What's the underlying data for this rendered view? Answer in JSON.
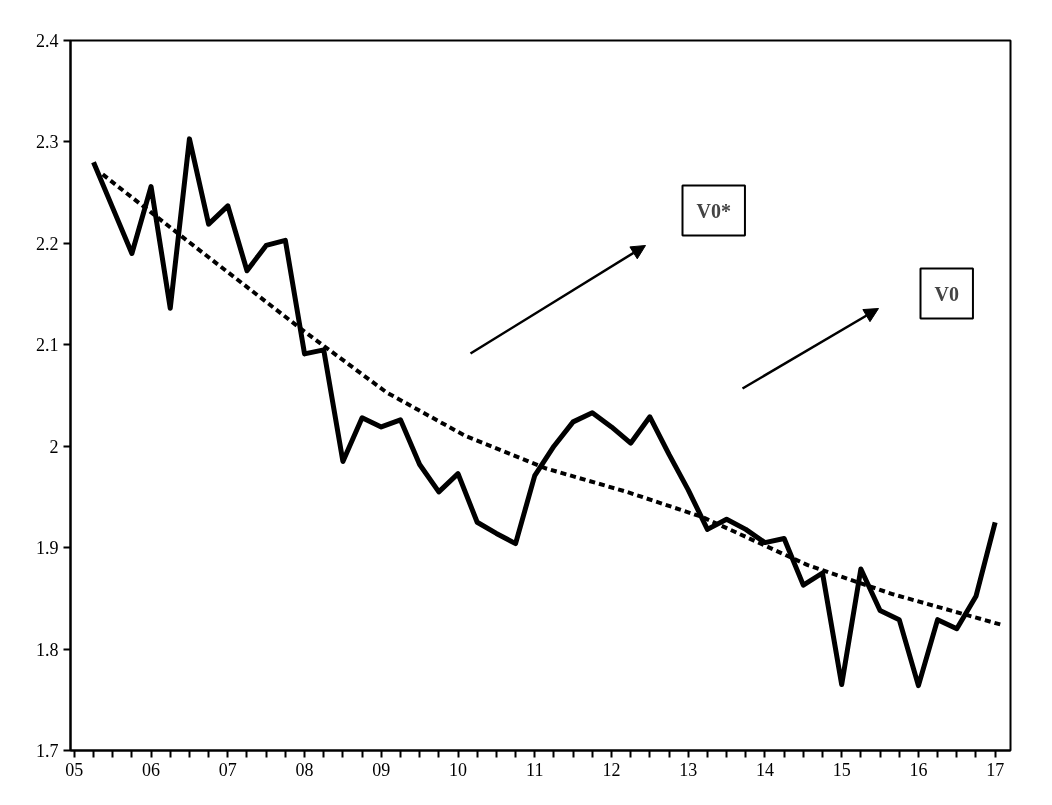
{
  "chart_data": {
    "type": "line",
    "x": [
      2005.25,
      2005.5,
      2005.75,
      2006,
      2006.25,
      2006.5,
      2006.75,
      2007,
      2007.25,
      2007.5,
      2007.75,
      2008,
      2008.25,
      2008.5,
      2008.75,
      2009,
      2009.25,
      2009.5,
      2009.75,
      2010,
      2010.25,
      2010.5,
      2010.75,
      2011,
      2011.25,
      2011.5,
      2011.75,
      2012,
      2012.25,
      2012.5,
      2012.75,
      2013,
      2013.25,
      2013.5,
      2013.75,
      2014,
      2014.25,
      2014.5,
      2014.75,
      2015,
      2015.25,
      2015.5,
      2015.75,
      2016,
      2016.25,
      2016.5,
      2016.75,
      2017
    ],
    "series": [
      {
        "color": "#000000",
        "line_style": "solid",
        "values": [
          2.28,
          2.235,
          2.19,
          2.256,
          2.136,
          2.303,
          2.219,
          2.237,
          2.173,
          2.198,
          2.203,
          2.091,
          2.095,
          1.985,
          2.028,
          2.019,
          2.026,
          1.982,
          1.955,
          1.973,
          1.925,
          1.914,
          1.904,
          1.971,
          2.0,
          2.024,
          2.033,
          2.019,
          2.003,
          2.029,
          1.992,
          1.957,
          1.918,
          1.928,
          1.918,
          1.905,
          1.909,
          1.863,
          1.875,
          1.765,
          1.879,
          1.838,
          1.829,
          1.764,
          1.829,
          1.82,
          1.852,
          1.925
        ]
      },
      {
        "color": "#000000",
        "line_style": "dashed",
        "x": [
          2005.37,
          2005.57,
          2006.55,
          2008.0,
          2009.07,
          2010.1,
          2011.15,
          2012.2,
          2013.19,
          2014.55,
          2015.67,
          2017.08
        ],
        "values": [
          2.268,
          2.256,
          2.198,
          2.113,
          2.053,
          2.01,
          1.978,
          1.955,
          1.93,
          1.883,
          1.854,
          1.824
        ]
      }
    ],
    "ylim": [
      1.7,
      2.4
    ],
    "yticks": [
      1.7,
      1.8,
      1.9,
      2.0,
      2.1,
      2.2,
      2.3,
      2.4
    ],
    "xlim": [
      2004.95,
      2017.2
    ],
    "xticks": [
      {
        "value": 2005,
        "label": "05"
      },
      {
        "value": 2005.25,
        "label": null
      },
      {
        "value": 2005.5,
        "label": null
      },
      {
        "value": 2005.75,
        "label": null
      },
      {
        "value": 2006,
        "label": "06"
      },
      {
        "value": 2006.25,
        "label": null
      },
      {
        "value": 2006.5,
        "label": null
      },
      {
        "value": 2006.75,
        "label": null
      },
      {
        "value": 2007,
        "label": "07"
      },
      {
        "value": 2007.25,
        "label": null
      },
      {
        "value": 2007.5,
        "label": null
      },
      {
        "value": 2007.75,
        "label": null
      },
      {
        "value": 2008,
        "label": "08"
      },
      {
        "value": 2008.25,
        "label": null
      },
      {
        "value": 2008.5,
        "label": null
      },
      {
        "value": 2008.75,
        "label": null
      },
      {
        "value": 2009,
        "label": "09"
      },
      {
        "value": 2009.25,
        "label": null
      },
      {
        "value": 2009.5,
        "label": null
      },
      {
        "value": 2009.75,
        "label": null
      },
      {
        "value": 2010,
        "label": "10"
      },
      {
        "value": 2010.25,
        "label": null
      },
      {
        "value": 2010.5,
        "label": null
      },
      {
        "value": 2010.75,
        "label": null
      },
      {
        "value": 2011,
        "label": "11"
      },
      {
        "value": 2011.25,
        "label": null
      },
      {
        "value": 2011.5,
        "label": null
      },
      {
        "value": 2011.75,
        "label": null
      },
      {
        "value": 2012,
        "label": "12"
      },
      {
        "value": 2012.25,
        "label": null
      },
      {
        "value": 2012.5,
        "label": null
      },
      {
        "value": 2012.75,
        "label": null
      },
      {
        "value": 2013,
        "label": "13"
      },
      {
        "value": 2013.25,
        "label": null
      },
      {
        "value": 2013.5,
        "label": null
      },
      {
        "value": 2013.75,
        "label": null
      },
      {
        "value": 2014,
        "label": "14"
      },
      {
        "value": 2014.25,
        "label": null
      },
      {
        "value": 2014.5,
        "label": null
      },
      {
        "value": 2014.75,
        "label": null
      },
      {
        "value": 2015,
        "label": "15"
      },
      {
        "value": 2015.25,
        "label": null
      },
      {
        "value": 2015.5,
        "label": null
      },
      {
        "value": 2015.75,
        "label": null
      },
      {
        "value": 2016,
        "label": "16"
      },
      {
        "value": 2016.25,
        "label": null
      },
      {
        "value": 2016.5,
        "label": null
      },
      {
        "value": 2016.75,
        "label": null
      },
      {
        "value": 2017,
        "label": "17"
      }
    ],
    "annotations": [
      "V0*",
      "V0"
    ],
    "grid": false,
    "marker": "none"
  }
}
